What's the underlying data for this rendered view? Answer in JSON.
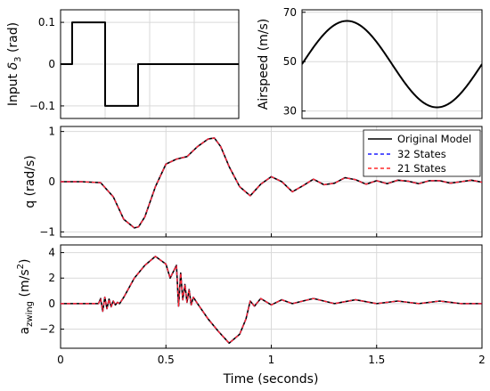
{
  "chart_data": [
    {
      "id": "input",
      "type": "line",
      "ylabel_main": "Input ",
      "ylabel_greek": "δ",
      "ylabel_sub": "3",
      "ylabel_unit": " (rad)",
      "xlim": [
        0,
        2
      ],
      "ylim": [
        -0.13,
        0.13
      ],
      "xticks": [],
      "yticks": [
        0.1,
        0,
        -0.1
      ],
      "ytick_labels": [
        "0.1",
        "0",
        "−0.1"
      ],
      "grid": true,
      "series": [
        {
          "color": "#000000",
          "dash": "solid",
          "x": [
            0,
            0.13,
            0.13,
            0.5,
            0.5,
            0.87,
            0.87,
            2
          ],
          "y": [
            0,
            0,
            0.1,
            0.1,
            -0.1,
            -0.1,
            0,
            0
          ]
        }
      ]
    },
    {
      "id": "airspeed",
      "type": "line",
      "ylabel": "Airspeed (m/s)",
      "xlim": [
        0,
        2
      ],
      "ylim": [
        27,
        71
      ],
      "xticks": [],
      "yticks": [
        70,
        50,
        30
      ],
      "ytick_labels": [
        "70",
        "50",
        "30"
      ],
      "grid": true,
      "series": [
        {
          "color": "#000000",
          "dash": "solid",
          "function": "sine",
          "mean": 49,
          "amplitude": 17.5,
          "period": 2.0
        }
      ]
    },
    {
      "id": "pitch-rate",
      "type": "line",
      "ylabel": "q (rad/s)",
      "xlim": [
        0,
        2
      ],
      "ylim": [
        -1.1,
        1.1
      ],
      "xticks": [
        0,
        0.5,
        1,
        1.5,
        2
      ],
      "yticks": [
        1,
        0,
        -1
      ],
      "ytick_labels": [
        "1",
        "0",
        "−1"
      ],
      "grid": true,
      "legend": "top-right",
      "series": [
        {
          "name": "Original Model",
          "color": "#000000",
          "dash": "solid"
        },
        {
          "name": "32 States",
          "color": "#1f1fff",
          "dash": "dashed"
        },
        {
          "name": "21 States",
          "color": "#ff2a2a",
          "dash": "dashed"
        }
      ],
      "x": [
        0,
        0.1,
        0.19,
        0.25,
        0.3,
        0.35,
        0.37,
        0.4,
        0.45,
        0.5,
        0.55,
        0.6,
        0.65,
        0.7,
        0.73,
        0.76,
        0.8,
        0.85,
        0.9,
        0.95,
        1.0,
        1.05,
        1.1,
        1.15,
        1.2,
        1.25,
        1.3,
        1.35,
        1.4,
        1.45,
        1.5,
        1.55,
        1.6,
        1.65,
        1.7,
        1.75,
        1.8,
        1.85,
        1.9,
        1.95,
        2.0
      ],
      "y": [
        0,
        0,
        -0.02,
        -0.3,
        -0.75,
        -0.92,
        -0.9,
        -0.7,
        -0.1,
        0.35,
        0.45,
        0.5,
        0.7,
        0.85,
        0.87,
        0.7,
        0.3,
        -0.1,
        -0.28,
        -0.05,
        0.1,
        0.0,
        -0.2,
        -0.08,
        0.05,
        -0.06,
        -0.03,
        0.08,
        0.04,
        -0.05,
        0.02,
        -0.04,
        0.03,
        0.01,
        -0.04,
        0.02,
        0.02,
        -0.03,
        0.0,
        0.03,
        -0.01
      ]
    },
    {
      "id": "accel",
      "type": "line",
      "ylabel_main": "a",
      "ylabel_sub": "zwing",
      "ylabel_unit_pre": "(m/s",
      "ylabel_unit_sup": "2",
      "ylabel_unit_post": ")",
      "xlim": [
        0,
        2
      ],
      "ylim": [
        -3.5,
        4.6
      ],
      "xticks": [
        0,
        0.5,
        1,
        1.5,
        2
      ],
      "xtick_labels": [
        "0",
        "0.5",
        "1",
        "1.5",
        "2"
      ],
      "yticks": [
        4,
        2,
        0,
        -2
      ],
      "ytick_labels": [
        "4",
        "2",
        "0",
        "−2"
      ],
      "xlabel": "Time (seconds)",
      "grid": true,
      "series": [
        {
          "name": "Original Model",
          "color": "#000000",
          "dash": "solid"
        },
        {
          "name": "32 States",
          "color": "#1f1fff",
          "dash": "dashed"
        },
        {
          "name": "21 States",
          "color": "#ff2a2a",
          "dash": "dashed"
        }
      ],
      "x": [
        0,
        0.18,
        0.19,
        0.2,
        0.21,
        0.22,
        0.23,
        0.24,
        0.25,
        0.26,
        0.27,
        0.28,
        0.3,
        0.35,
        0.4,
        0.45,
        0.5,
        0.52,
        0.55,
        0.56,
        0.57,
        0.58,
        0.59,
        0.6,
        0.61,
        0.62,
        0.63,
        0.65,
        0.7,
        0.75,
        0.8,
        0.85,
        0.88,
        0.9,
        0.92,
        0.95,
        1.0,
        1.05,
        1.1,
        1.2,
        1.3,
        1.4,
        1.5,
        1.6,
        1.7,
        1.8,
        1.9,
        2.0
      ],
      "y": [
        0,
        0,
        0.4,
        -0.6,
        0.5,
        -0.4,
        0.35,
        -0.25,
        0.2,
        -0.1,
        0.1,
        0.0,
        0.5,
        2.0,
        3.0,
        3.7,
        3.1,
        2.0,
        3.0,
        -0.2,
        2.4,
        0.3,
        1.5,
        0.1,
        1.1,
        -0.1,
        0.5,
        0.0,
        -1.2,
        -2.2,
        -3.1,
        -2.4,
        -1.2,
        0.2,
        -0.2,
        0.4,
        -0.1,
        0.3,
        0.0,
        0.4,
        0.0,
        0.3,
        0.0,
        0.2,
        0.0,
        0.2,
        0.0,
        0.0
      ]
    }
  ]
}
